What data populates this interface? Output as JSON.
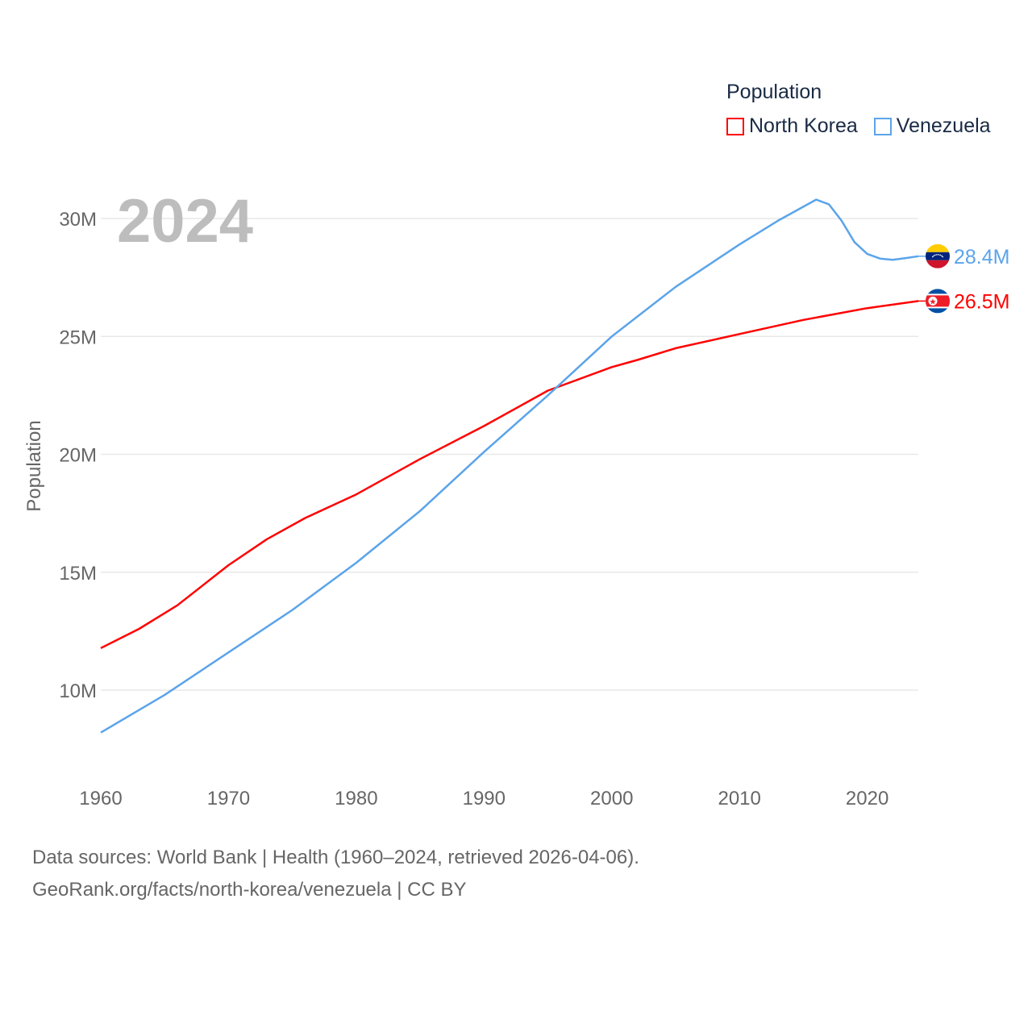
{
  "chart_data": {
    "type": "line",
    "title": "Population",
    "year_label": "2024",
    "ylabel": "Population",
    "xlim": [
      1960,
      2024
    ],
    "ylim": [
      8,
      31.5
    ],
    "x_ticks": [
      1960,
      1970,
      1980,
      1990,
      2000,
      2010,
      2020
    ],
    "x_tick_labels": [
      "1960",
      "1970",
      "1980",
      "1990",
      "2000",
      "2010",
      "2020"
    ],
    "y_ticks": [
      10,
      15,
      20,
      25,
      30
    ],
    "y_tick_labels": [
      "10M",
      "15M",
      "20M",
      "25M",
      "30M"
    ],
    "grid": true,
    "legend_position": "top-right",
    "series": [
      {
        "name": "North Korea",
        "color": "#ff0000",
        "end_label": "26.5M",
        "flag": "north-korea-flag",
        "x": [
          1960,
          1963,
          1966,
          1970,
          1973,
          1976,
          1980,
          1985,
          1990,
          1995,
          2000,
          2002,
          2005,
          2010,
          2015,
          2020,
          2024
        ],
        "y": [
          11.78,
          12.6,
          13.6,
          15.3,
          16.4,
          17.3,
          18.3,
          19.8,
          21.2,
          22.7,
          23.7,
          24.0,
          24.5,
          25.1,
          25.7,
          26.2,
          26.5
        ]
      },
      {
        "name": "Venezuela",
        "color": "#5ba4ea",
        "end_label": "28.4M",
        "flag": "venezuela-flag",
        "x": [
          1960,
          1965,
          1970,
          1975,
          1980,
          1985,
          1990,
          1995,
          2000,
          2005,
          2010,
          2013,
          2015,
          2016,
          2017,
          2018,
          2019,
          2020,
          2021,
          2022,
          2023,
          2024
        ],
        "y": [
          8.2,
          9.8,
          11.6,
          13.4,
          15.4,
          17.6,
          20.1,
          22.5,
          25.0,
          27.1,
          28.9,
          29.9,
          30.5,
          30.8,
          30.6,
          29.9,
          29.0,
          28.5,
          28.3,
          28.25,
          28.32,
          28.4
        ]
      }
    ]
  },
  "footer": {
    "line1": "Data sources: World Bank | Health (1960–2024, retrieved 2026-04-06).",
    "line2": "GeoRank.org/facts/north-korea/venezuela | CC BY"
  }
}
